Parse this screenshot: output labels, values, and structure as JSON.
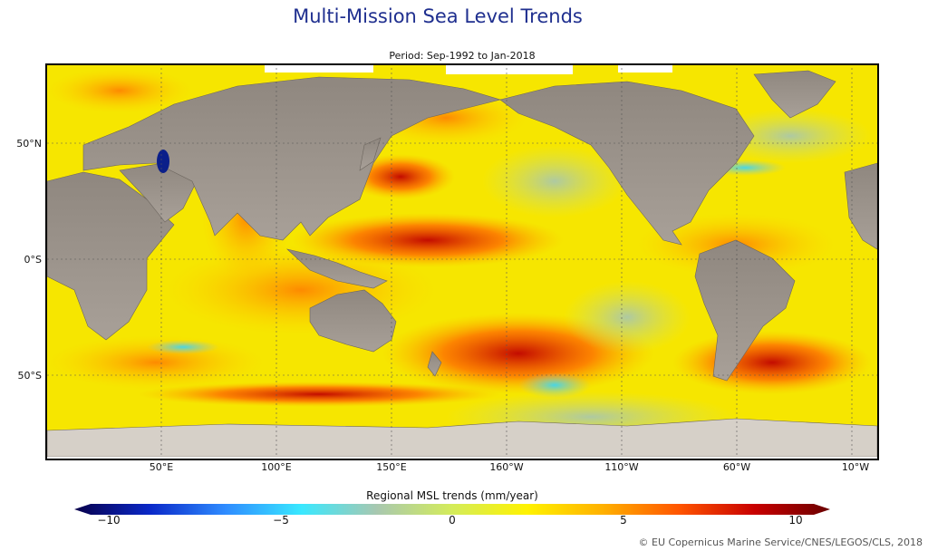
{
  "title": "Multi-Mission Sea Level Trends",
  "subtitle": "Period: Sep-1992 to Jan-2018",
  "latitude_labels": [
    "50°N",
    "0°S",
    "50°S"
  ],
  "longitude_labels": [
    "50°E",
    "100°E",
    "150°E",
    "160°W",
    "110°W",
    "60°W",
    "10°W"
  ],
  "colorbar": {
    "title": "Regional MSL trends (mm/year)",
    "ticks": [
      "−10",
      "−5",
      "0",
      "5",
      "10"
    ],
    "range": [
      -10,
      10
    ],
    "colors": [
      "#08004a",
      "#0a28c8",
      "#2f8cff",
      "#39e8ff",
      "#a8c8b0",
      "#d4ec5a",
      "#fff200",
      "#ffb000",
      "#ff5500",
      "#c80000",
      "#6a0000"
    ]
  },
  "credit": "© EU Copernicus Marine Service/CNES/LEGOS/CLS, 2018"
}
